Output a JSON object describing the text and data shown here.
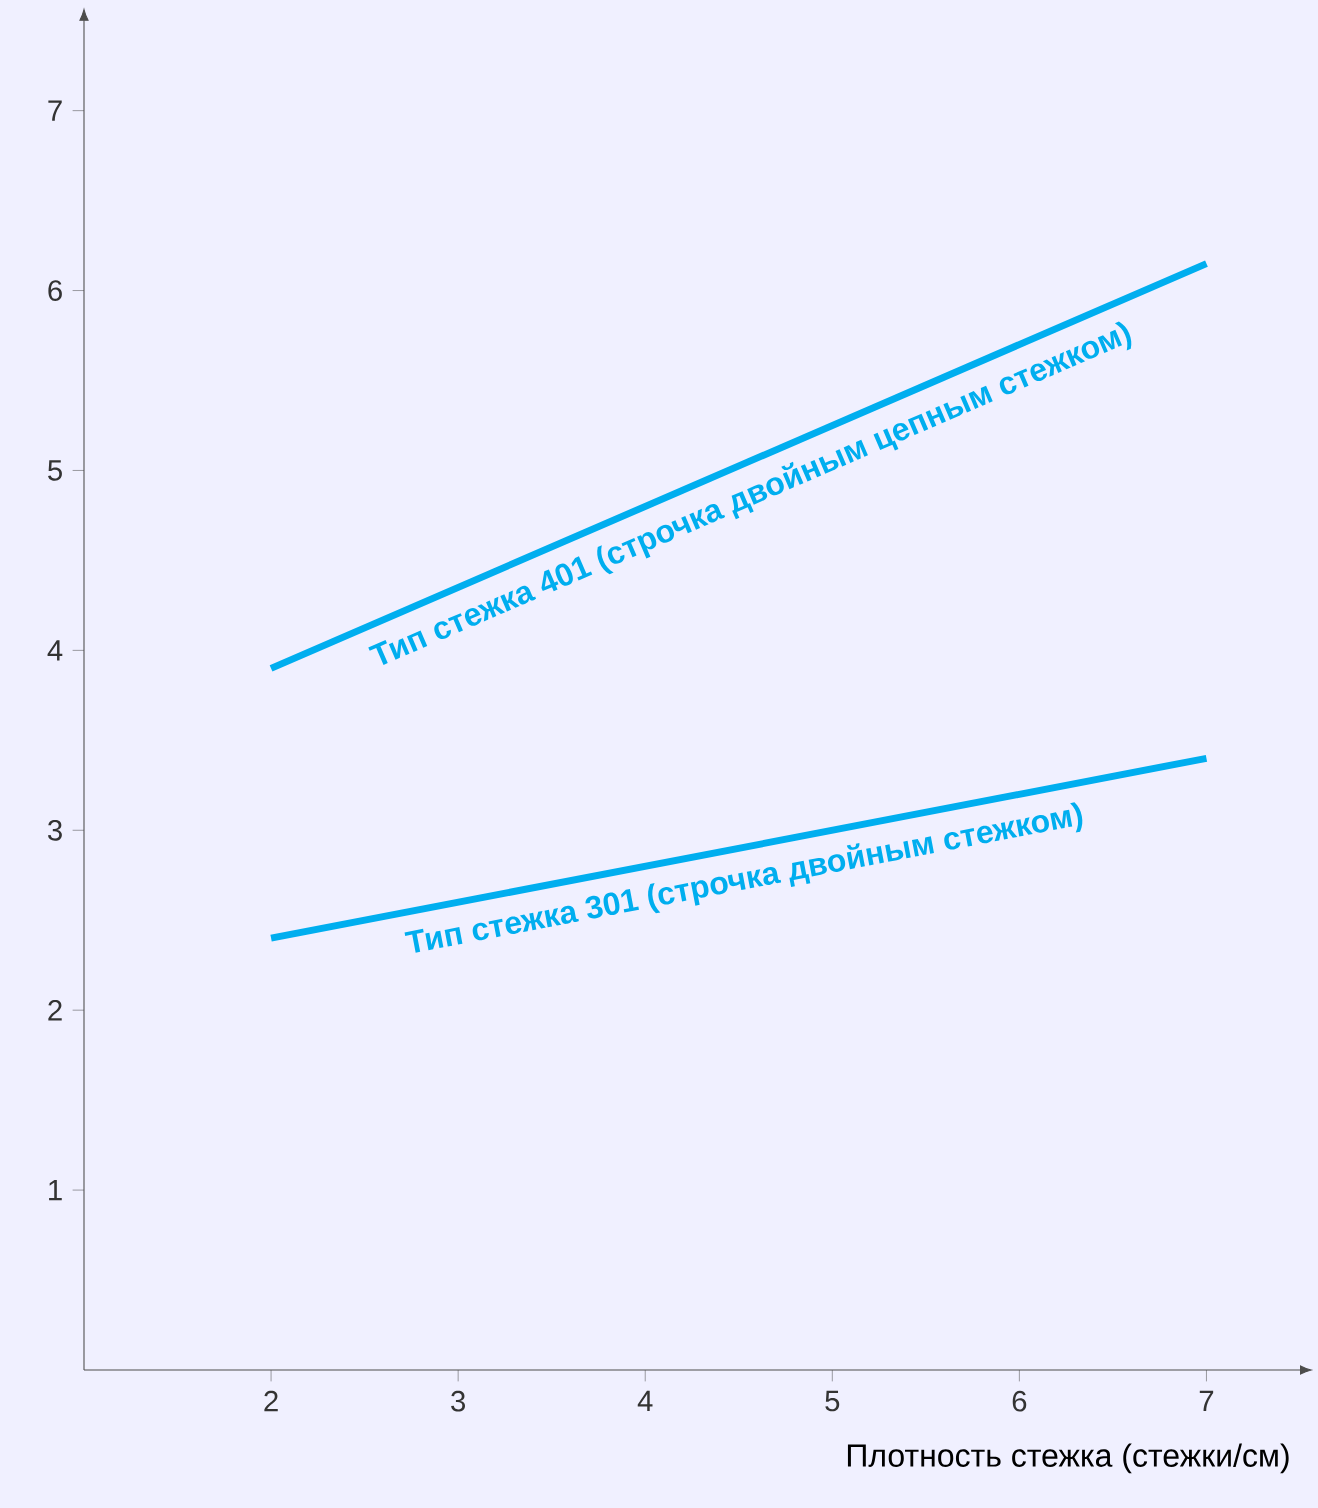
{
  "chart_data": {
    "type": "line",
    "xlabel": "Плотность стежка (стежки/см)",
    "x": [
      2,
      7
    ],
    "series": [
      {
        "name": "Тип стежка 401 (строчка двойным цепным стежком)",
        "color": "#00aeef",
        "values": [
          3.9,
          6.15
        ]
      },
      {
        "name": "Тип стежка 301 (строчка двойным стежком)",
        "color": "#00aeef",
        "values": [
          2.4,
          3.4
        ]
      }
    ],
    "xlim": [
      1,
      7.5
    ],
    "ylim": [
      0,
      7.5
    ],
    "xticks": [
      2,
      3,
      4,
      5,
      6,
      7
    ],
    "yticks": [
      1,
      2,
      3,
      4,
      5,
      6,
      7
    ]
  }
}
